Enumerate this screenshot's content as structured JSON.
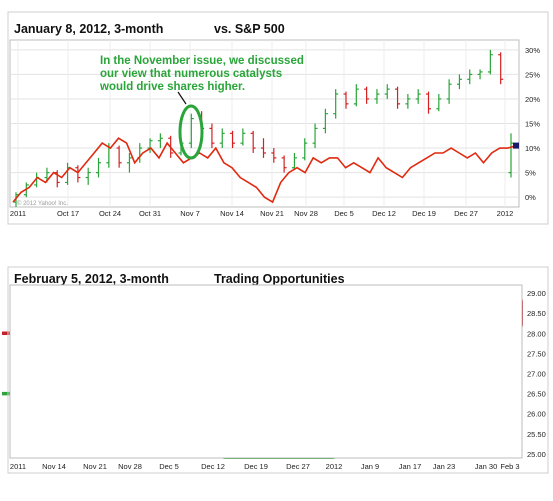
{
  "chart_data": [
    {
      "type": "line",
      "title": "January 8, 2012, 3-month",
      "subtitle": "vs. S&P 500",
      "annotation": "In the November issue, we discussed our view that numerous catalysts would drive shares higher.",
      "watermark": "© 2012 Yahoo! Inc.",
      "x_tick_labels": [
        "2011",
        "Oct 17",
        "Oct 24",
        "Oct 31",
        "Nov 7",
        "Nov 14",
        "Nov 21",
        "Nov 28",
        "Dec 5",
        "Dec 12",
        "Dec 19",
        "Dec 27",
        "2012"
      ],
      "y_tick_labels": [
        "30%",
        "25%",
        "20%",
        "15%",
        "10%",
        "5%",
        "0%"
      ],
      "ylim": [
        -2,
        32
      ],
      "series": [
        {
          "kind": "ohlc",
          "color": "#2aa53a",
          "down_color": "#d42020",
          "points": [
            {
              "o": -1,
              "h": 1,
              "l": -2,
              "c": 0.5
            },
            {
              "o": 0.5,
              "h": 3,
              "l": 0,
              "c": 2.5
            },
            {
              "o": 2.5,
              "h": 5,
              "l": 2,
              "c": 4
            },
            {
              "o": 4,
              "h": 6,
              "l": 3,
              "c": 5
            },
            {
              "o": 5,
              "h": 5.5,
              "l": 2,
              "c": 3
            },
            {
              "o": 3,
              "h": 7,
              "l": 2.5,
              "c": 6
            },
            {
              "o": 6,
              "h": 6.5,
              "l": 3,
              "c": 4
            },
            {
              "o": 4,
              "h": 6,
              "l": 2.5,
              "c": 5
            },
            {
              "o": 5,
              "h": 8,
              "l": 4,
              "c": 7
            },
            {
              "o": 7,
              "h": 11,
              "l": 6,
              "c": 10
            },
            {
              "o": 10,
              "h": 10.5,
              "l": 6,
              "c": 7
            },
            {
              "o": 7,
              "h": 9,
              "l": 5,
              "c": 8
            },
            {
              "o": 8,
              "h": 11,
              "l": 7,
              "c": 10
            },
            {
              "o": 10,
              "h": 12,
              "l": 9,
              "c": 11.5
            },
            {
              "o": 11.5,
              "h": 13,
              "l": 10,
              "c": 12
            },
            {
              "o": 12,
              "h": 12.5,
              "l": 8,
              "c": 9
            },
            {
              "o": 9,
              "h": 12,
              "l": 8.5,
              "c": 11
            },
            {
              "o": 11,
              "h": 17,
              "l": 10,
              "c": 16
            },
            {
              "o": 16,
              "h": 17.5,
              "l": 13,
              "c": 14
            },
            {
              "o": 14,
              "h": 15,
              "l": 10,
              "c": 11
            },
            {
              "o": 11,
              "h": 14,
              "l": 10,
              "c": 13
            },
            {
              "o": 13,
              "h": 13.5,
              "l": 10,
              "c": 11
            },
            {
              "o": 11,
              "h": 14,
              "l": 10.5,
              "c": 13
            },
            {
              "o": 13,
              "h": 13.5,
              "l": 9,
              "c": 10
            },
            {
              "o": 10,
              "h": 12,
              "l": 8,
              "c": 9
            },
            {
              "o": 9,
              "h": 10,
              "l": 7,
              "c": 8
            },
            {
              "o": 8,
              "h": 8.5,
              "l": 5,
              "c": 6
            },
            {
              "o": 6,
              "h": 9,
              "l": 5.5,
              "c": 8
            },
            {
              "o": 8,
              "h": 12,
              "l": 7.5,
              "c": 11
            },
            {
              "o": 11,
              "h": 15,
              "l": 10,
              "c": 14
            },
            {
              "o": 14,
              "h": 18,
              "l": 13,
              "c": 17
            },
            {
              "o": 17,
              "h": 22,
              "l": 16,
              "c": 21
            },
            {
              "o": 21,
              "h": 21.5,
              "l": 18,
              "c": 19
            },
            {
              "o": 19,
              "h": 23,
              "l": 18.5,
              "c": 22
            },
            {
              "o": 22,
              "h": 22.5,
              "l": 19,
              "c": 20
            },
            {
              "o": 20,
              "h": 22,
              "l": 19,
              "c": 21
            },
            {
              "o": 21,
              "h": 23,
              "l": 20,
              "c": 22
            },
            {
              "o": 22,
              "h": 22.5,
              "l": 18,
              "c": 19
            },
            {
              "o": 19,
              "h": 21,
              "l": 18,
              "c": 20
            },
            {
              "o": 20,
              "h": 22,
              "l": 19,
              "c": 21
            },
            {
              "o": 21,
              "h": 21.5,
              "l": 17,
              "c": 18
            },
            {
              "o": 18,
              "h": 21,
              "l": 17.5,
              "c": 20
            },
            {
              "o": 20,
              "h": 24,
              "l": 19,
              "c": 23
            },
            {
              "o": 23,
              "h": 25,
              "l": 22,
              "c": 24
            },
            {
              "o": 24,
              "h": 26,
              "l": 23,
              "c": 25
            },
            {
              "o": 25,
              "h": 26,
              "l": 24,
              "c": 25.5
            },
            {
              "o": 25.5,
              "h": 30,
              "l": 25,
              "c": 29
            },
            {
              "o": 29,
              "h": 29.5,
              "l": 23,
              "c": 24
            },
            {
              "o": 5,
              "h": 13,
              "l": 4,
              "c": 11
            }
          ]
        },
        {
          "kind": "line",
          "name": "S&P 500",
          "color": "#e02a10",
          "values": [
            -1,
            1,
            2,
            4,
            3,
            5,
            4,
            6,
            5,
            7,
            9,
            11,
            10,
            12,
            11,
            7,
            9,
            10,
            8,
            11,
            9,
            7,
            8,
            9,
            8,
            10,
            7,
            6,
            4,
            3,
            2,
            0,
            -1,
            3,
            5,
            6,
            5,
            8,
            7,
            8,
            8,
            6,
            7,
            6,
            5,
            8,
            6,
            5,
            4,
            6,
            7,
            8,
            9,
            9,
            10,
            9,
            8,
            9,
            7,
            9,
            10,
            10,
            10.5
          ]
        }
      ],
      "highlight": {
        "shape": "ellipse",
        "color": "#2aa53a",
        "around": "Nov 7"
      }
    },
    {
      "type": "line",
      "title": "February 5, 2012, 3-month",
      "subtitle": "Trading Opportunities",
      "watermark": "© 2012 Yahoo! Inc.",
      "x_tick_labels": [
        "2011",
        "Nov 14",
        "Nov 21",
        "Nov 28",
        "Dec 5",
        "Dec 12",
        "Dec 19",
        "Dec 27",
        "2012",
        "Jan 9",
        "Jan 17",
        "Jan 23",
        "Jan 30",
        "Feb 3"
      ],
      "y_tick_labels": [
        "29.00",
        "28.50",
        "28.00",
        "27.50",
        "27.00",
        "26.50",
        "26.00",
        "25.50",
        "25.00"
      ],
      "ylim": [
        24.9,
        29.2
      ],
      "reference_lines": [
        {
          "value": 28.0,
          "color": "#c8202a"
        },
        {
          "value": 26.5,
          "color": "#2aa53a"
        }
      ],
      "highlight_boxes": [
        {
          "color": "#c8202a",
          "x_from": "Nov 10",
          "x_to": "Nov 17",
          "y_from": 27.6,
          "y_to": 28.5
        },
        {
          "color": "#c8202a",
          "x_from": "Nov 30",
          "x_to": "Dec 14",
          "y_from": 27.6,
          "y_to": 28.5
        },
        {
          "color": "#2aa53a",
          "x_from": "Nov 18",
          "x_to": "Nov 29",
          "y_from": 25.1,
          "y_to": 26.9
        },
        {
          "color": "#2aa53a",
          "x_from": "Dec 14",
          "x_to": "Jan 1",
          "y_from": 24.9,
          "y_to": 26.9
        },
        {
          "color": "#c8202a",
          "x_from": "Jan 20",
          "x_to": "Feb 4",
          "y_from": 28.0,
          "y_to": 29.0
        }
      ],
      "series": [
        {
          "kind": "ohlc",
          "color": "#2aa53a",
          "down_color": "#d42020",
          "points": [
            {
              "o": 27.8,
              "h": 28.2,
              "l": 27.1,
              "c": 27.3
            },
            {
              "o": 27.3,
              "h": 27.5,
              "l": 26.4,
              "c": 26.5
            },
            {
              "o": 26.5,
              "h": 27.5,
              "l": 26.3,
              "c": 27.2
            },
            {
              "o": 27.2,
              "h": 28.4,
              "l": 27.0,
              "c": 28.1
            },
            {
              "o": 28.1,
              "h": 28.3,
              "l": 27.6,
              "c": 27.8
            },
            {
              "o": 27.8,
              "h": 28.4,
              "l": 27.5,
              "c": 28.2
            },
            {
              "o": 28.2,
              "h": 28.4,
              "l": 27.2,
              "c": 27.4
            },
            {
              "o": 27.4,
              "h": 27.6,
              "l": 26.8,
              "c": 27.0
            },
            {
              "o": 27.0,
              "h": 27.8,
              "l": 26.9,
              "c": 27.6
            },
            {
              "o": 26.8,
              "h": 27.0,
              "l": 25.5,
              "c": 26.4
            },
            {
              "o": 26.4,
              "h": 26.8,
              "l": 25.8,
              "c": 26.6
            },
            {
              "o": 26.6,
              "h": 26.7,
              "l": 25.6,
              "c": 25.8
            },
            {
              "o": 25.8,
              "h": 26.0,
              "l": 25.3,
              "c": 25.4
            },
            {
              "o": 25.4,
              "h": 26.3,
              "l": 25.3,
              "c": 26.2
            },
            {
              "o": 26.2,
              "h": 27.0,
              "l": 26.1,
              "c": 26.8
            },
            {
              "o": 26.8,
              "h": 27.6,
              "l": 26.7,
              "c": 27.4
            },
            {
              "o": 27.4,
              "h": 28.2,
              "l": 27.3,
              "c": 28.0
            },
            {
              "o": 28.0,
              "h": 28.3,
              "l": 27.6,
              "c": 27.9
            },
            {
              "o": 27.9,
              "h": 28.5,
              "l": 27.8,
              "c": 28.3
            },
            {
              "o": 28.3,
              "h": 28.4,
              "l": 27.6,
              "c": 27.8
            },
            {
              "o": 27.8,
              "h": 28.3,
              "l": 27.7,
              "c": 28.1
            },
            {
              "o": 28.1,
              "h": 28.6,
              "l": 27.9,
              "c": 28.4
            },
            {
              "o": 28.4,
              "h": 28.5,
              "l": 27.7,
              "c": 27.8
            },
            {
              "o": 27.8,
              "h": 28.0,
              "l": 27.4,
              "c": 27.6
            },
            {
              "o": 27.0,
              "h": 27.1,
              "l": 26.2,
              "c": 26.4
            },
            {
              "o": 26.4,
              "h": 26.6,
              "l": 25.8,
              "c": 26.0
            },
            {
              "o": 26.0,
              "h": 26.3,
              "l": 25.5,
              "c": 25.7
            },
            {
              "o": 25.7,
              "h": 25.8,
              "l": 25.1,
              "c": 25.3
            },
            {
              "o": 25.3,
              "h": 25.9,
              "l": 25.2,
              "c": 25.8
            },
            {
              "o": 25.8,
              "h": 26.0,
              "l": 25.5,
              "c": 25.6
            },
            {
              "o": 25.6,
              "h": 25.9,
              "l": 25.3,
              "c": 25.8
            },
            {
              "o": 25.8,
              "h": 25.9,
              "l": 25.4,
              "c": 25.5
            },
            {
              "o": 25.5,
              "h": 25.6,
              "l": 25.1,
              "c": 25.2
            },
            {
              "o": 25.2,
              "h": 25.7,
              "l": 25.1,
              "c": 25.6
            },
            {
              "o": 25.6,
              "h": 26.1,
              "l": 25.5,
              "c": 26.0
            },
            {
              "o": 26.0,
              "h": 26.6,
              "l": 25.9,
              "c": 26.5
            },
            {
              "o": 26.5,
              "h": 26.7,
              "l": 26.3,
              "c": 26.4
            },
            {
              "o": 26.4,
              "h": 26.6,
              "l": 26.3,
              "c": 26.5
            },
            {
              "o": 26.5,
              "h": 26.7,
              "l": 26.4,
              "c": 26.6
            },
            {
              "o": 26.6,
              "h": 26.9,
              "l": 26.5,
              "c": 26.8
            },
            {
              "o": 26.8,
              "h": 26.9,
              "l": 26.5,
              "c": 26.6
            },
            {
              "o": 26.6,
              "h": 27.0,
              "l": 26.5,
              "c": 26.9
            },
            {
              "o": 26.9,
              "h": 27.2,
              "l": 26.8,
              "c": 27.1
            },
            {
              "o": 27.1,
              "h": 27.6,
              "l": 27.0,
              "c": 27.5
            },
            {
              "o": 27.5,
              "h": 28.2,
              "l": 27.4,
              "c": 28.1
            },
            {
              "o": 28.1,
              "h": 28.8,
              "l": 28.0,
              "c": 28.7
            },
            {
              "o": 28.7,
              "h": 28.8,
              "l": 28.2,
              "c": 28.4
            },
            {
              "o": 28.4,
              "h": 28.6,
              "l": 28.1,
              "c": 28.2
            },
            {
              "o": 28.2,
              "h": 28.4,
              "l": 27.4,
              "c": 27.6
            },
            {
              "o": 27.6,
              "h": 28.1,
              "l": 27.5,
              "c": 28.0
            },
            {
              "o": 28.0,
              "h": 28.8,
              "l": 27.9,
              "c": 28.7
            },
            {
              "o": 28.7,
              "h": 28.9,
              "l": 28.3,
              "c": 28.4
            }
          ]
        }
      ]
    }
  ]
}
